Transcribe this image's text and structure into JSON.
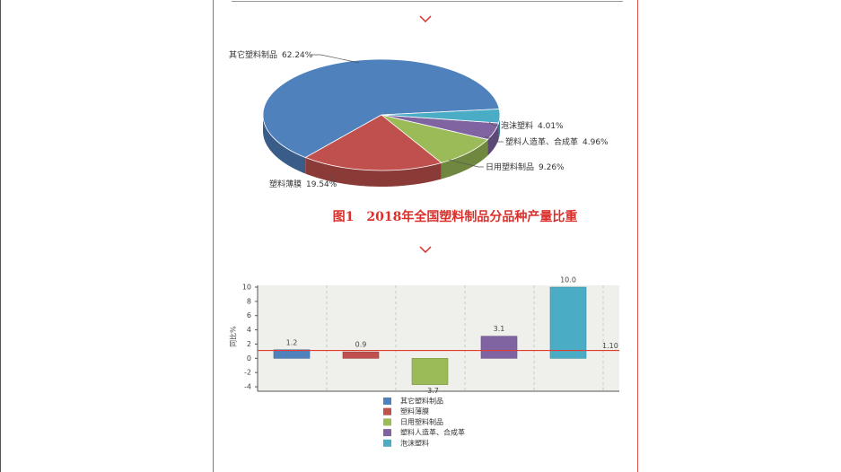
{
  "chart_data": [
    {
      "type": "pie",
      "title": "图1　2018年全国塑料制品分品种产量比重",
      "categories": [
        "其它塑料制品",
        "塑料薄膜",
        "日用塑料制品",
        "塑料人造革、合成革",
        "泡沫塑料"
      ],
      "values": [
        62.24,
        19.54,
        9.26,
        4.96,
        4.01
      ],
      "value_labels": [
        "62.24%",
        "19.54%",
        "9.26%",
        "4.96%",
        "4.01%"
      ],
      "colors": [
        "#4f81bd",
        "#c0504d",
        "#9bbb59",
        "#8064a2",
        "#4bacc6"
      ]
    },
    {
      "type": "bar",
      "ylabel": "同比%",
      "categories": [
        "其它塑料制品",
        "塑料薄膜",
        "日用塑料制品",
        "塑料人造革、合成革",
        "泡沫塑料"
      ],
      "values": [
        1.2,
        0.9,
        -3.7,
        3.1,
        10.0
      ],
      "value_labels": [
        "1.2",
        "0.9",
        "-3.7",
        "3.1",
        "10.0"
      ],
      "colors": [
        "#4f81bd",
        "#c0504d",
        "#9bbb59",
        "#8064a2",
        "#4bacc6"
      ],
      "ylim": [
        -4.5,
        10
      ],
      "yticks": [
        -4,
        -2,
        0,
        2,
        4,
        6,
        8,
        10
      ],
      "reference_line": {
        "value": 1.1,
        "label": "1.10",
        "color": "#e03c31"
      },
      "grid": true
    }
  ]
}
